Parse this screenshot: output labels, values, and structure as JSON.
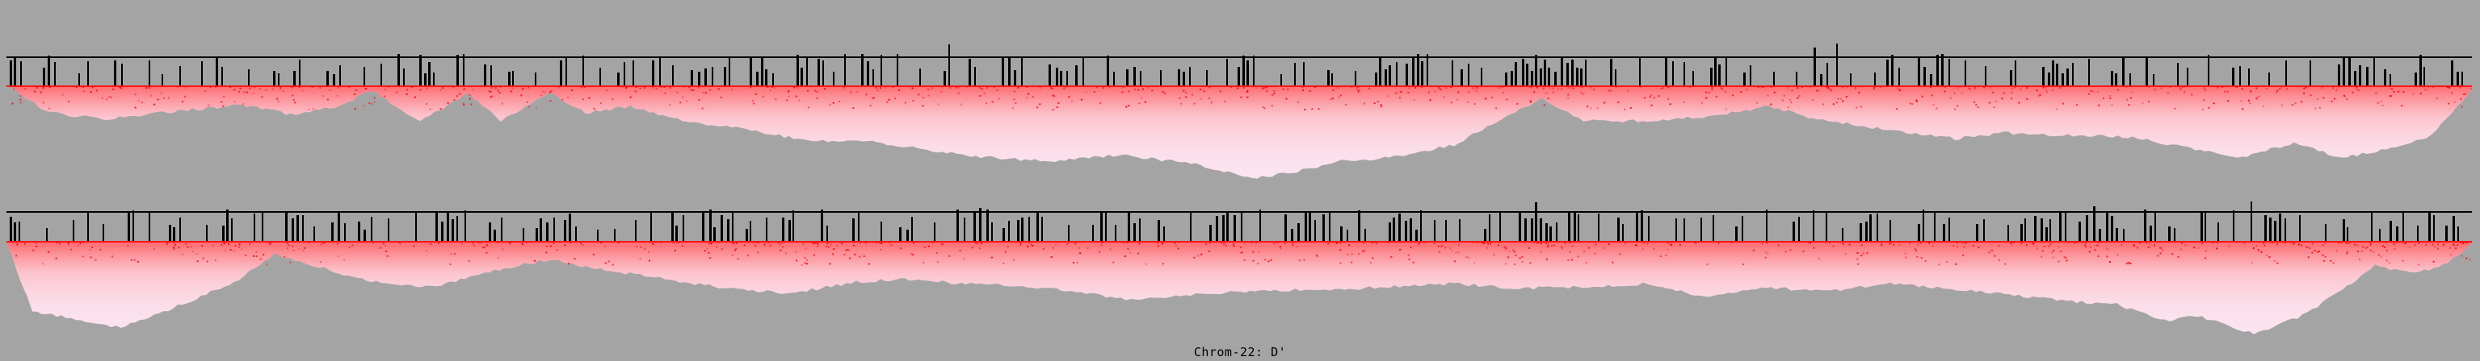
{
  "caption": "Chrom-22: D'",
  "colors": {
    "background": "#a4a4a4",
    "triangle_fill": "#fbe3ef",
    "strong_ld": "#ff0000",
    "track": "#000000"
  },
  "icons": {
    "snp_marker": "vertical-bar",
    "ld_block": "triangle-heatmap"
  }
}
